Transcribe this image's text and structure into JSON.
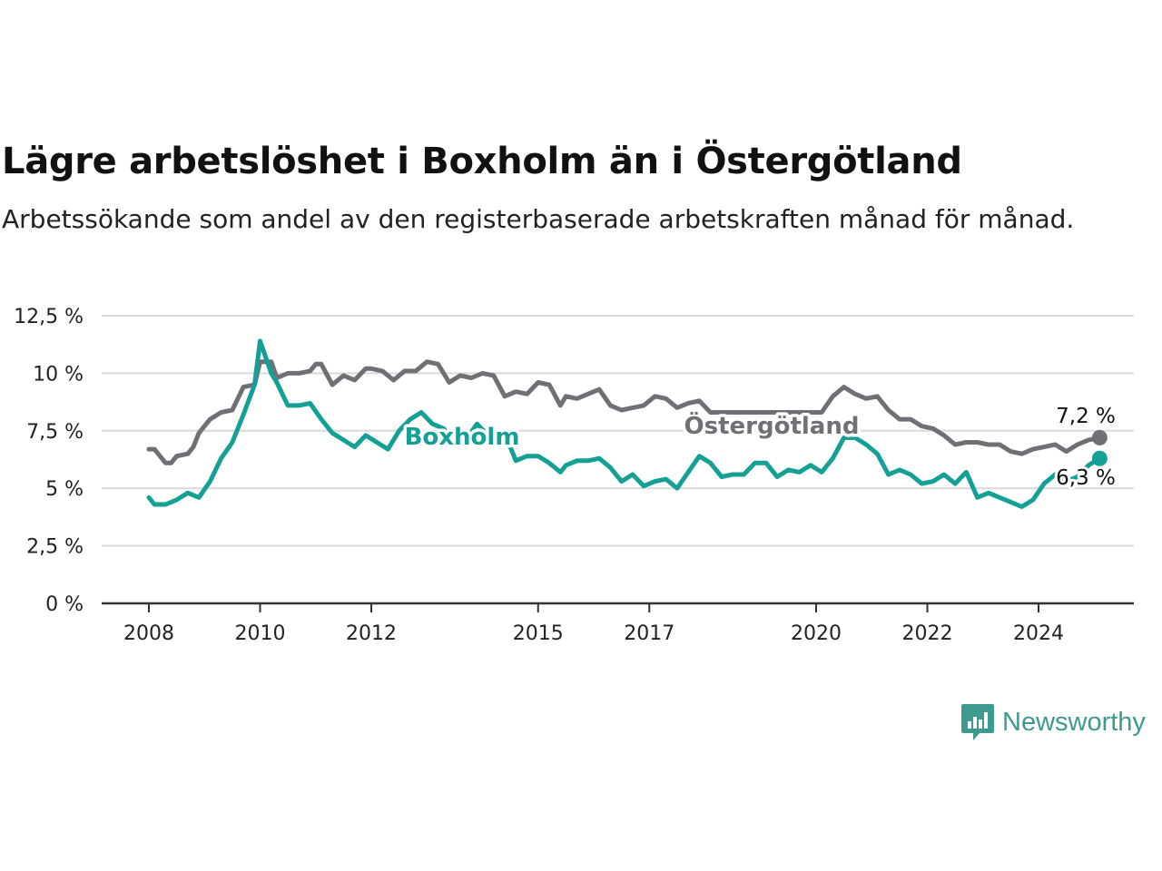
{
  "header": {
    "title": "Lägre arbetslöshet i Boxholm än i Östergötland",
    "subtitle": "Arbetssökande som andel av den registerbaserade arbetskraften månad för månad."
  },
  "brand": {
    "name": "Newsworthy",
    "icon": "newsworthy-logo-icon",
    "color": "#3d9a8f"
  },
  "chart_data": {
    "type": "line",
    "title": "Lägre arbetslöshet i Boxholm än i Östergötland",
    "subtitle": "Arbetssökande som andel av den registerbaserade arbetskraften månad för månad.",
    "xlabel": "",
    "ylabel": "",
    "xlim": [
      2007.7,
      2026.3
    ],
    "ylim": [
      0,
      12.5
    ],
    "grid": true,
    "legend": "inline labels",
    "x_ticks": [
      {
        "value": 2008,
        "label": "2008"
      },
      {
        "value": 2010,
        "label": "2010"
      },
      {
        "value": 2012,
        "label": "2012"
      },
      {
        "value": 2015,
        "label": "2015"
      },
      {
        "value": 2017,
        "label": "2017"
      },
      {
        "value": 2020,
        "label": "2020"
      },
      {
        "value": 2022,
        "label": "2022"
      },
      {
        "value": 2024,
        "label": "2024"
      }
    ],
    "y_ticks": [
      {
        "value": 0,
        "label": "0 %"
      },
      {
        "value": 2.5,
        "label": "2,5 %"
      },
      {
        "value": 5,
        "label": "5 %"
      },
      {
        "value": 7.5,
        "label": "7,5 %"
      },
      {
        "value": 10,
        "label": "10 %"
      },
      {
        "value": 12.5,
        "label": "12,5 %"
      }
    ],
    "series": [
      {
        "name": "Östergötland",
        "color": "#706f76",
        "end_label": "7,2 %",
        "points": [
          [
            2008.0,
            6.7
          ],
          [
            2008.1,
            6.7
          ],
          [
            2008.3,
            6.1
          ],
          [
            2008.4,
            6.1
          ],
          [
            2008.5,
            6.4
          ],
          [
            2008.7,
            6.5
          ],
          [
            2008.8,
            6.8
          ],
          [
            2008.9,
            7.4
          ],
          [
            2009.1,
            8.0
          ],
          [
            2009.3,
            8.3
          ],
          [
            2009.5,
            8.4
          ],
          [
            2009.7,
            9.4
          ],
          [
            2009.9,
            9.5
          ],
          [
            2010.0,
            10.5
          ],
          [
            2010.2,
            10.5
          ],
          [
            2010.3,
            9.8
          ],
          [
            2010.5,
            10.0
          ],
          [
            2010.7,
            10.0
          ],
          [
            2010.9,
            10.1
          ],
          [
            2011.0,
            10.4
          ],
          [
            2011.1,
            10.4
          ],
          [
            2011.3,
            9.5
          ],
          [
            2011.5,
            9.9
          ],
          [
            2011.7,
            9.7
          ],
          [
            2011.9,
            10.2
          ],
          [
            2012.0,
            10.2
          ],
          [
            2012.2,
            10.1
          ],
          [
            2012.4,
            9.7
          ],
          [
            2012.6,
            10.1
          ],
          [
            2012.8,
            10.1
          ],
          [
            2013.0,
            10.5
          ],
          [
            2013.2,
            10.4
          ],
          [
            2013.4,
            9.6
          ],
          [
            2013.6,
            9.9
          ],
          [
            2013.8,
            9.8
          ],
          [
            2014.0,
            10.0
          ],
          [
            2014.2,
            9.9
          ],
          [
            2014.4,
            9.0
          ],
          [
            2014.6,
            9.2
          ],
          [
            2014.8,
            9.1
          ],
          [
            2015.0,
            9.6
          ],
          [
            2015.2,
            9.5
          ],
          [
            2015.4,
            8.6
          ],
          [
            2015.5,
            9.0
          ],
          [
            2015.7,
            8.9
          ],
          [
            2015.9,
            9.1
          ],
          [
            2016.1,
            9.3
          ],
          [
            2016.3,
            8.6
          ],
          [
            2016.5,
            8.4
          ],
          [
            2016.7,
            8.5
          ],
          [
            2016.9,
            8.6
          ],
          [
            2017.1,
            9.0
          ],
          [
            2017.3,
            8.9
          ],
          [
            2017.5,
            8.5
          ],
          [
            2017.7,
            8.7
          ],
          [
            2017.9,
            8.8
          ],
          [
            2018.1,
            8.3
          ],
          [
            2019.9,
            8.3
          ],
          [
            2020.1,
            8.3
          ],
          [
            2020.3,
            9.0
          ],
          [
            2020.5,
            9.4
          ],
          [
            2020.7,
            9.1
          ],
          [
            2020.9,
            8.9
          ],
          [
            2021.1,
            9.0
          ],
          [
            2021.3,
            8.4
          ],
          [
            2021.5,
            8.0
          ],
          [
            2021.7,
            8.0
          ],
          [
            2021.9,
            7.7
          ],
          [
            2022.1,
            7.6
          ],
          [
            2022.3,
            7.3
          ],
          [
            2022.5,
            6.9
          ],
          [
            2022.7,
            7.0
          ],
          [
            2022.9,
            7.0
          ],
          [
            2023.1,
            6.9
          ],
          [
            2023.3,
            6.9
          ],
          [
            2023.5,
            6.6
          ],
          [
            2023.7,
            6.5
          ],
          [
            2023.9,
            6.7
          ],
          [
            2024.1,
            6.8
          ],
          [
            2024.3,
            6.9
          ],
          [
            2024.5,
            6.6
          ],
          [
            2024.7,
            6.9
          ],
          [
            2024.9,
            7.1
          ],
          [
            2025.1,
            7.2
          ]
        ]
      },
      {
        "name": "Boxholm",
        "color": "#14a095",
        "end_label": "6,3 %",
        "points": [
          [
            2008.0,
            4.6
          ],
          [
            2008.1,
            4.3
          ],
          [
            2008.3,
            4.3
          ],
          [
            2008.5,
            4.5
          ],
          [
            2008.7,
            4.8
          ],
          [
            2008.9,
            4.6
          ],
          [
            2009.1,
            5.3
          ],
          [
            2009.3,
            6.3
          ],
          [
            2009.5,
            7.0
          ],
          [
            2009.7,
            8.2
          ],
          [
            2009.9,
            9.5
          ],
          [
            2010.0,
            11.4
          ],
          [
            2010.2,
            10.0
          ],
          [
            2010.3,
            9.6
          ],
          [
            2010.5,
            8.6
          ],
          [
            2010.7,
            8.6
          ],
          [
            2010.9,
            8.7
          ],
          [
            2011.1,
            8.0
          ],
          [
            2011.3,
            7.4
          ],
          [
            2011.5,
            7.1
          ],
          [
            2011.7,
            6.8
          ],
          [
            2011.9,
            7.3
          ],
          [
            2012.1,
            7.0
          ],
          [
            2012.3,
            6.7
          ],
          [
            2012.5,
            7.5
          ],
          [
            2012.7,
            8.0
          ],
          [
            2012.9,
            8.3
          ],
          [
            2013.1,
            7.8
          ],
          [
            2013.3,
            7.6
          ],
          [
            2013.5,
            7.0
          ],
          [
            2013.7,
            7.1
          ],
          [
            2013.9,
            7.8
          ],
          [
            2014.1,
            7.3
          ],
          [
            2014.3,
            7.1
          ],
          [
            2014.5,
            6.8
          ],
          [
            2014.6,
            6.2
          ],
          [
            2014.8,
            6.4
          ],
          [
            2015.0,
            6.4
          ],
          [
            2015.2,
            6.1
          ],
          [
            2015.4,
            5.7
          ],
          [
            2015.5,
            6.0
          ],
          [
            2015.7,
            6.2
          ],
          [
            2015.9,
            6.2
          ],
          [
            2016.1,
            6.3
          ],
          [
            2016.3,
            5.9
          ],
          [
            2016.5,
            5.3
          ],
          [
            2016.7,
            5.6
          ],
          [
            2016.9,
            5.1
          ],
          [
            2017.1,
            5.3
          ],
          [
            2017.3,
            5.4
          ],
          [
            2017.5,
            5.0
          ],
          [
            2017.7,
            5.7
          ],
          [
            2017.9,
            6.4
          ],
          [
            2018.1,
            6.1
          ],
          [
            2018.3,
            5.5
          ],
          [
            2018.5,
            5.6
          ],
          [
            2018.7,
            5.6
          ],
          [
            2018.9,
            6.1
          ],
          [
            2019.1,
            6.1
          ],
          [
            2019.3,
            5.5
          ],
          [
            2019.5,
            5.8
          ],
          [
            2019.7,
            5.7
          ],
          [
            2019.9,
            6.0
          ],
          [
            2020.1,
            5.7
          ],
          [
            2020.3,
            6.3
          ],
          [
            2020.5,
            7.2
          ],
          [
            2020.7,
            7.2
          ],
          [
            2020.9,
            6.9
          ],
          [
            2021.1,
            6.5
          ],
          [
            2021.3,
            5.6
          ],
          [
            2021.5,
            5.8
          ],
          [
            2021.7,
            5.6
          ],
          [
            2021.9,
            5.2
          ],
          [
            2022.1,
            5.3
          ],
          [
            2022.3,
            5.6
          ],
          [
            2022.5,
            5.2
          ],
          [
            2022.7,
            5.7
          ],
          [
            2022.9,
            4.6
          ],
          [
            2023.1,
            4.8
          ],
          [
            2023.3,
            4.6
          ],
          [
            2023.5,
            4.4
          ],
          [
            2023.7,
            4.2
          ],
          [
            2023.9,
            4.5
          ],
          [
            2024.1,
            5.2
          ],
          [
            2024.3,
            5.6
          ],
          [
            2024.5,
            5.3
          ],
          [
            2024.7,
            5.5
          ],
          [
            2024.9,
            6.0
          ],
          [
            2025.1,
            6.3
          ]
        ]
      }
    ]
  }
}
